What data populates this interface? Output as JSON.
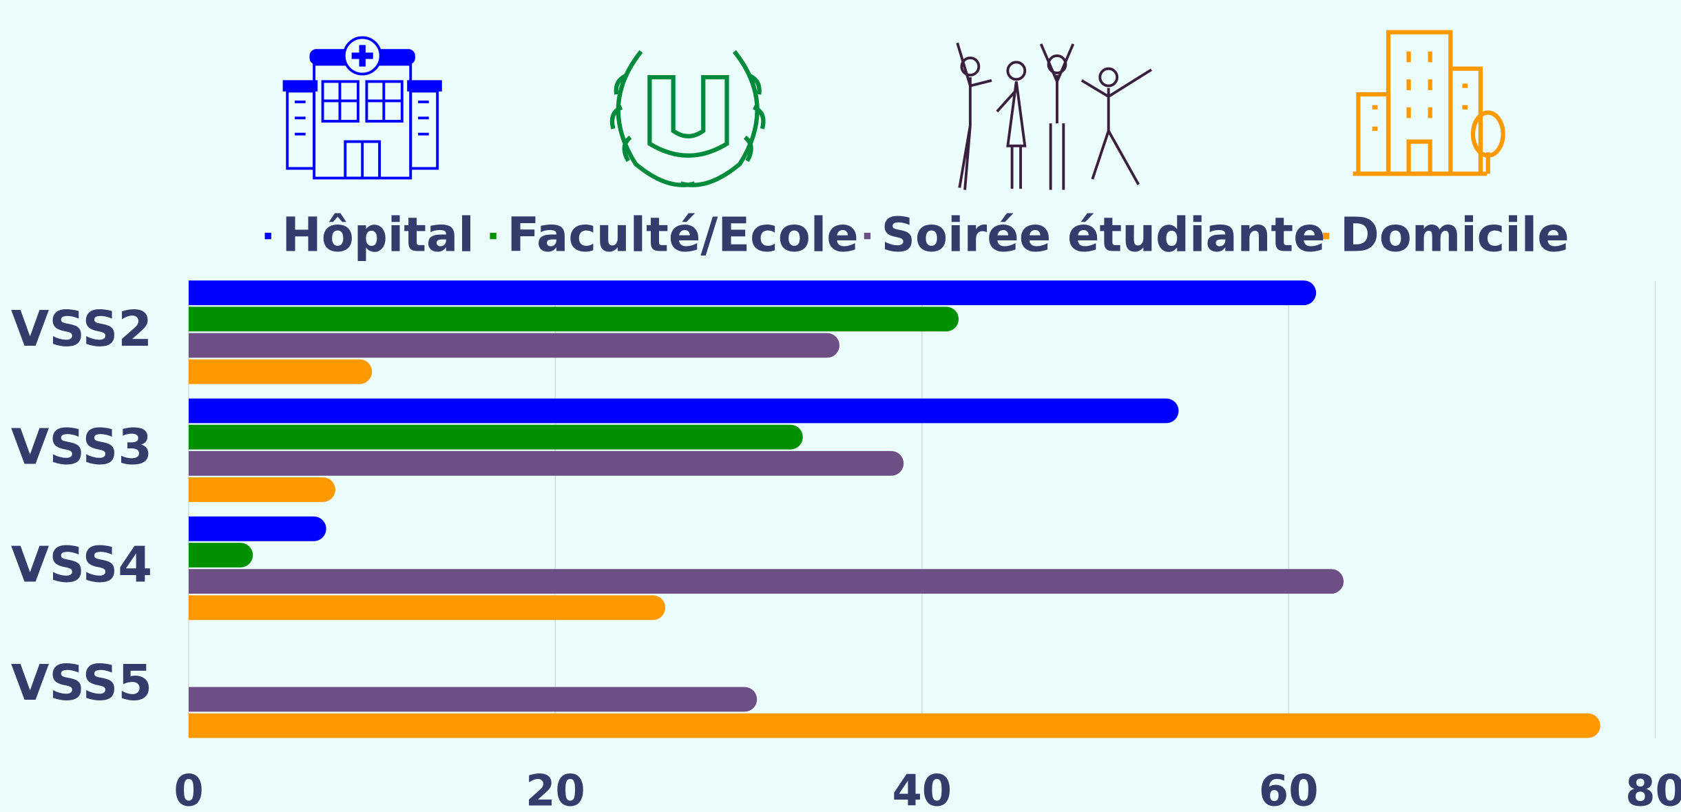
{
  "chart_data": {
    "type": "bar",
    "orientation": "horizontal",
    "categories": [
      "VSS2",
      "VSS3",
      "VSS4",
      "VSS5"
    ],
    "series": [
      {
        "name": "Hôpital",
        "color": "#0000ff",
        "values": [
          61.5,
          54,
          7.5,
          0
        ]
      },
      {
        "name": "Faculté/Ecole",
        "color": "#009000",
        "values": [
          42,
          33.5,
          3.5,
          0
        ]
      },
      {
        "name": "Soirée étudiante",
        "color": "#6e4f85",
        "values": [
          35.5,
          39,
          63,
          31
        ]
      },
      {
        "name": "Domicile",
        "color": "#ff9900",
        "values": [
          10,
          8,
          26,
          77
        ]
      }
    ],
    "xlim": [
      0,
      80
    ],
    "xticks": [
      0,
      20,
      40,
      60,
      80
    ],
    "grid": true,
    "legend": "top"
  }
}
